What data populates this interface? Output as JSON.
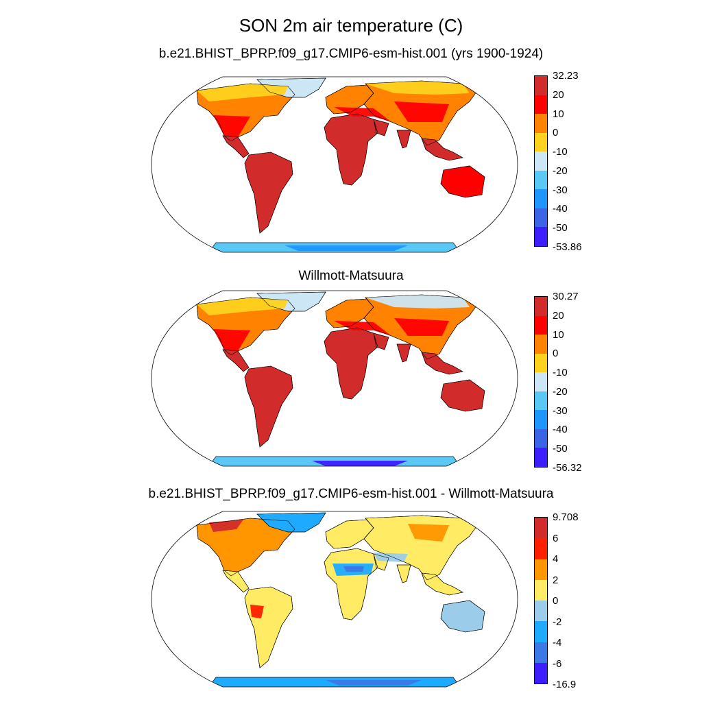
{
  "title": "SON 2m air temperature (C)",
  "panels": [
    {
      "id": "model",
      "subtitle": "b.e21.BHIST_BPRP.f09_g17.CMIP6-esm-hist.001 (yrs 1900-1924)",
      "colorbar": {
        "labels": [
          "32.23",
          "20",
          "10",
          "0",
          "-10",
          "-20",
          "-30",
          "-40",
          "-50",
          "-53.86"
        ],
        "colors": [
          "#d22b2b",
          "#ff0000",
          "#ff8200",
          "#ffd21e",
          "#cce6f5",
          "#5ac8f5",
          "#1e96ff",
          "#3c64e6",
          "#3c1eff"
        ]
      }
    },
    {
      "id": "obs",
      "subtitle": "Willmott-Matsuura",
      "colorbar": {
        "labels": [
          "30.27",
          "20",
          "10",
          "0",
          "-10",
          "-20",
          "-30",
          "-40",
          "-50",
          "-56.32"
        ],
        "colors": [
          "#d22b2b",
          "#ff0000",
          "#ff8200",
          "#ffd21e",
          "#cce6f5",
          "#5ac8f5",
          "#1e96ff",
          "#3c64e6",
          "#3c1eff"
        ]
      }
    },
    {
      "id": "diff",
      "subtitle": "b.e21.BHIST_BPRP.f09_g17.CMIP6-esm-hist.001 - Willmott-Matsuura",
      "colorbar": {
        "labels": [
          "9.708",
          "6",
          "4",
          "2",
          "0",
          "-2",
          "-4",
          "-6",
          "-16.9"
        ],
        "colors": [
          "#d22b2b",
          "#ff2000",
          "#ff9600",
          "#ffeb64",
          "#9bcdeb",
          "#1eaaff",
          "#3c78e6",
          "#3c1eff"
        ]
      }
    }
  ]
}
